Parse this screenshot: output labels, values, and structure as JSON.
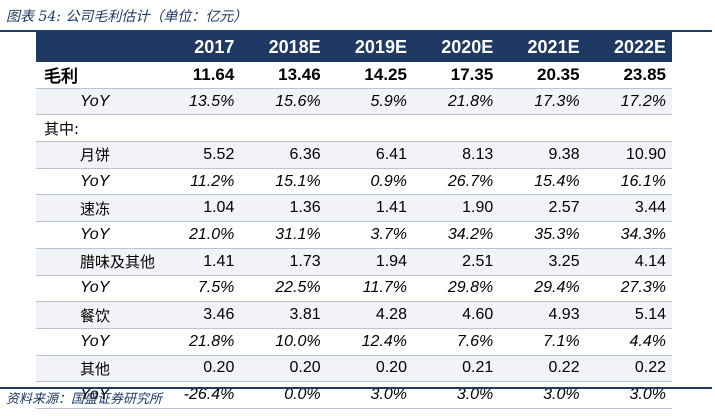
{
  "caption": "图表 54: 公司毛利估计（单位：亿元）",
  "source": "资料来源：国盛证券研究所",
  "table": {
    "columns": [
      "2017",
      "2018E",
      "2019E",
      "2020E",
      "2021E",
      "2022E"
    ],
    "rows": [
      {
        "label": "毛利",
        "values": [
          "11.64",
          "13.46",
          "14.25",
          "17.35",
          "20.35",
          "23.85"
        ]
      },
      {
        "label": "YoY",
        "values": [
          "13.5%",
          "15.6%",
          "5.9%",
          "21.8%",
          "17.3%",
          "17.2%"
        ]
      },
      {
        "label": "其中:",
        "values": [
          "",
          "",
          "",
          "",
          "",
          ""
        ]
      },
      {
        "label": "月饼",
        "values": [
          "5.52",
          "6.36",
          "6.41",
          "8.13",
          "9.38",
          "10.90"
        ]
      },
      {
        "label": "YoY",
        "values": [
          "11.2%",
          "15.1%",
          "0.9%",
          "26.7%",
          "15.4%",
          "16.1%"
        ]
      },
      {
        "label": "速冻",
        "values": [
          "1.04",
          "1.36",
          "1.41",
          "1.90",
          "2.57",
          "3.44"
        ]
      },
      {
        "label": "YoY",
        "values": [
          "21.0%",
          "31.1%",
          "3.7%",
          "34.2%",
          "35.3%",
          "34.3%"
        ]
      },
      {
        "label": "腊味及其他",
        "values": [
          "1.41",
          "1.73",
          "1.94",
          "2.51",
          "3.25",
          "4.14"
        ]
      },
      {
        "label": "YoY",
        "values": [
          "7.5%",
          "22.5%",
          "11.7%",
          "29.8%",
          "29.4%",
          "27.3%"
        ]
      },
      {
        "label": "餐饮",
        "values": [
          "3.46",
          "3.81",
          "4.28",
          "4.60",
          "4.93",
          "5.14"
        ]
      },
      {
        "label": "YoY",
        "values": [
          "21.8%",
          "10.0%",
          "12.4%",
          "7.6%",
          "7.1%",
          "4.4%"
        ]
      },
      {
        "label": "其他",
        "values": [
          "0.20",
          "0.20",
          "0.20",
          "0.21",
          "0.22",
          "0.22"
        ]
      },
      {
        "label": "YoY",
        "values": [
          "-26.4%",
          "0.0%",
          "3.0%",
          "3.0%",
          "3.0%",
          "3.0%"
        ]
      }
    ]
  }
}
